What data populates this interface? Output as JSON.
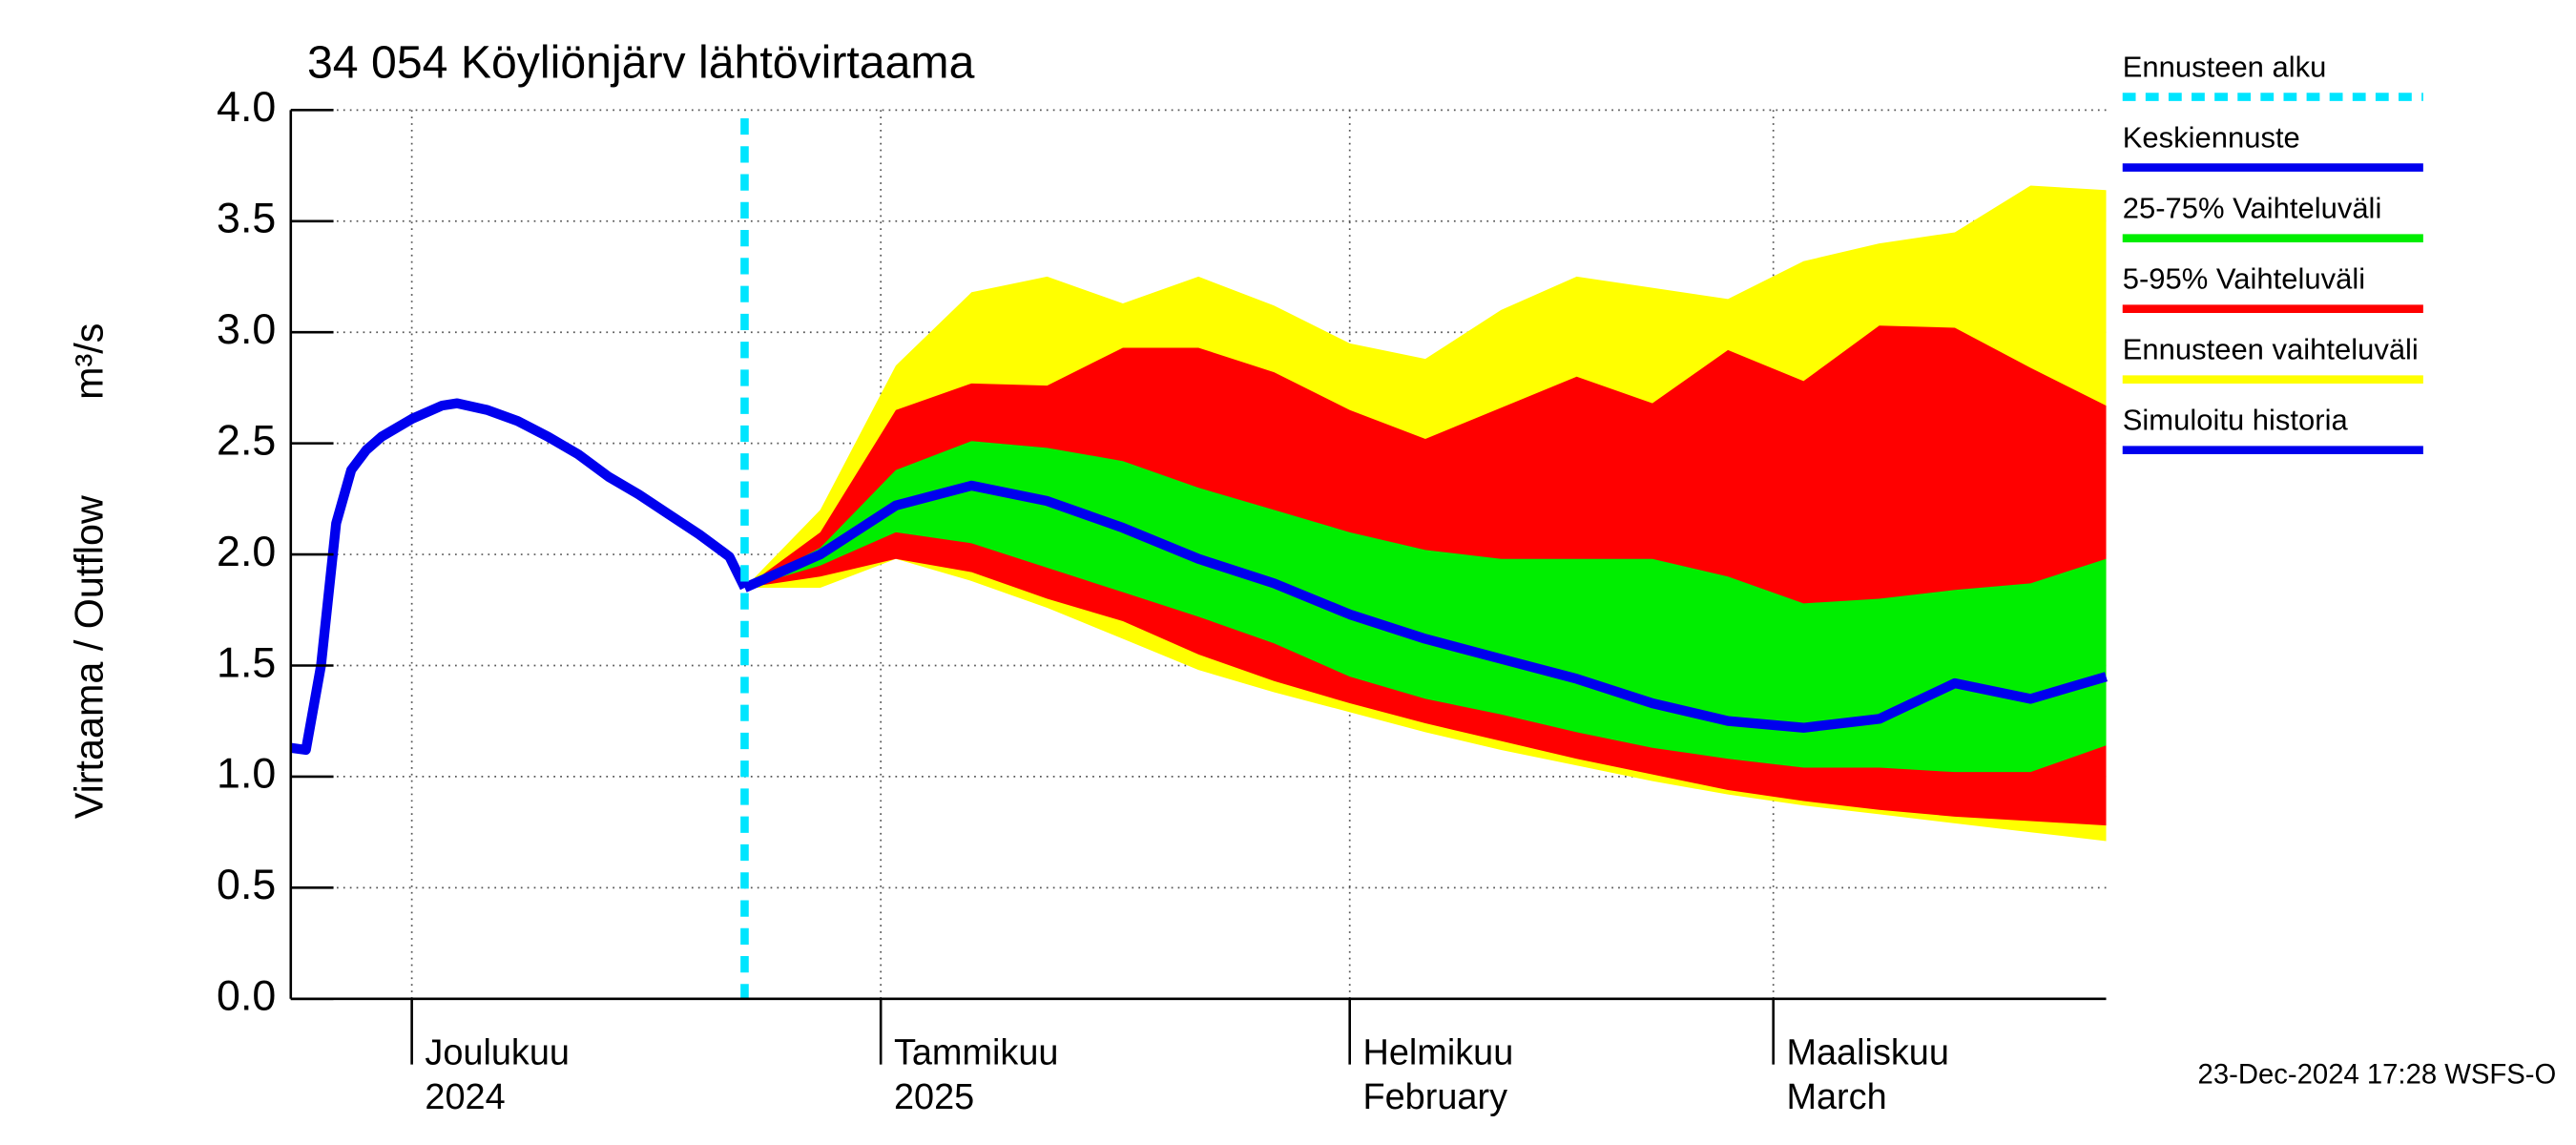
{
  "chart_data": {
    "type": "band-line",
    "title": "34 054 Köyliönjärv lähtövirtaama",
    "ylabel": [
      "Virtaama / Outflow",
      "m³/s"
    ],
    "footer": "23-Dec-2024 17:28 WSFS-O",
    "xlim": [
      "2024-11-23",
      "2025-03-23"
    ],
    "xticks": [
      {
        "value": "2024-12-01",
        "label": [
          "Joulukuu",
          "2024"
        ]
      },
      {
        "value": "2025-01-01",
        "label": [
          "Tammikuu",
          "2025"
        ]
      },
      {
        "value": "2025-02-01",
        "label": [
          "Helmikuu",
          "February"
        ]
      },
      {
        "value": "2025-03-01",
        "label": [
          "Maaliskuu",
          "March"
        ]
      }
    ],
    "ylim": [
      0,
      4
    ],
    "yticks": [
      {
        "value": 0,
        "label": "0.0"
      },
      0.5,
      {
        "value": 1,
        "label": "1.0"
      },
      1.5,
      {
        "value": 2,
        "label": "2.0"
      },
      2.5,
      {
        "value": 3,
        "label": "3.0"
      },
      3.5,
      {
        "value": 4,
        "label": "4.0"
      }
    ],
    "grid": true,
    "forecast_start": {
      "name": "Ennusteen alku",
      "x": "2024-12-23",
      "color": "#00e5ff"
    },
    "x": [
      "2024-12-23",
      "2024-12-28",
      "2025-01-02",
      "2025-01-07",
      "2025-01-12",
      "2025-01-17",
      "2025-01-22",
      "2025-01-27",
      "2025-02-01",
      "2025-02-06",
      "2025-02-11",
      "2025-02-16",
      "2025-02-21",
      "2025-02-26",
      "2025-03-03",
      "2025-03-08",
      "2025-03-13",
      "2025-03-18",
      "2025-03-23"
    ],
    "series": [
      {
        "name": "Keskiennuste",
        "color": "#0000ee",
        "kind": "line",
        "values": [
          1.85,
          2.0,
          2.22,
          2.31,
          2.24,
          2.12,
          1.98,
          1.87,
          1.73,
          1.62,
          1.53,
          1.44,
          1.33,
          1.25,
          1.22,
          1.26,
          1.42,
          1.35,
          1.45
        ]
      },
      {
        "name": "25-75% Vaihteluväli",
        "color": "#00ee00",
        "kind": "band",
        "upper": [
          1.85,
          2.03,
          2.38,
          2.51,
          2.48,
          2.42,
          2.3,
          2.2,
          2.1,
          2.02,
          1.98,
          1.98,
          1.98,
          1.9,
          1.78,
          1.8,
          1.84,
          1.87,
          1.98
        ],
        "lower": [
          1.85,
          1.95,
          2.1,
          2.05,
          1.94,
          1.83,
          1.72,
          1.6,
          1.45,
          1.35,
          1.28,
          1.2,
          1.13,
          1.08,
          1.04,
          1.04,
          1.02,
          1.02,
          1.14
        ]
      },
      {
        "name": "5-95% Vaihteluväli",
        "color": "#ff0000",
        "kind": "band",
        "upper": [
          1.85,
          2.1,
          2.65,
          2.77,
          2.76,
          2.93,
          2.93,
          2.82,
          2.65,
          2.52,
          2.66,
          2.8,
          2.68,
          2.92,
          2.78,
          3.03,
          3.02,
          2.84,
          2.67
        ],
        "lower": [
          1.85,
          1.9,
          1.98,
          1.92,
          1.8,
          1.7,
          1.55,
          1.43,
          1.33,
          1.24,
          1.16,
          1.08,
          1.01,
          0.94,
          0.89,
          0.85,
          0.82,
          0.8,
          0.78
        ]
      },
      {
        "name": "Ennusteen vaihteluväli",
        "color": "#ffff00",
        "kind": "band",
        "upper": [
          1.85,
          2.2,
          2.85,
          3.18,
          3.25,
          3.13,
          3.25,
          3.12,
          2.95,
          2.88,
          3.1,
          3.25,
          3.2,
          3.15,
          3.32,
          3.4,
          3.45,
          3.66,
          3.64
        ],
        "lower": [
          1.85,
          1.85,
          1.98,
          1.88,
          1.76,
          1.62,
          1.48,
          1.38,
          1.29,
          1.2,
          1.12,
          1.05,
          0.98,
          0.92,
          0.87,
          0.83,
          0.79,
          0.75,
          0.71
        ]
      },
      {
        "name": "Simuloitu historia",
        "color": "#0000ee",
        "kind": "line",
        "x": [
          "2024-11-23",
          "2024-11-24",
          "2024-11-25",
          "2024-11-26",
          "2024-11-27",
          "2024-11-28",
          "2024-11-29",
          "2024-12-01",
          "2024-12-03",
          "2024-12-04",
          "2024-12-06",
          "2024-12-08",
          "2024-12-10",
          "2024-12-12",
          "2024-12-14",
          "2024-12-16",
          "2024-12-18",
          "2024-12-20",
          "2024-12-22",
          "2024-12-23"
        ],
        "values": [
          1.13,
          1.12,
          1.5,
          2.14,
          2.38,
          2.47,
          2.53,
          2.61,
          2.67,
          2.68,
          2.65,
          2.6,
          2.53,
          2.45,
          2.35,
          2.27,
          2.18,
          2.09,
          1.99,
          1.85
        ]
      }
    ]
  }
}
